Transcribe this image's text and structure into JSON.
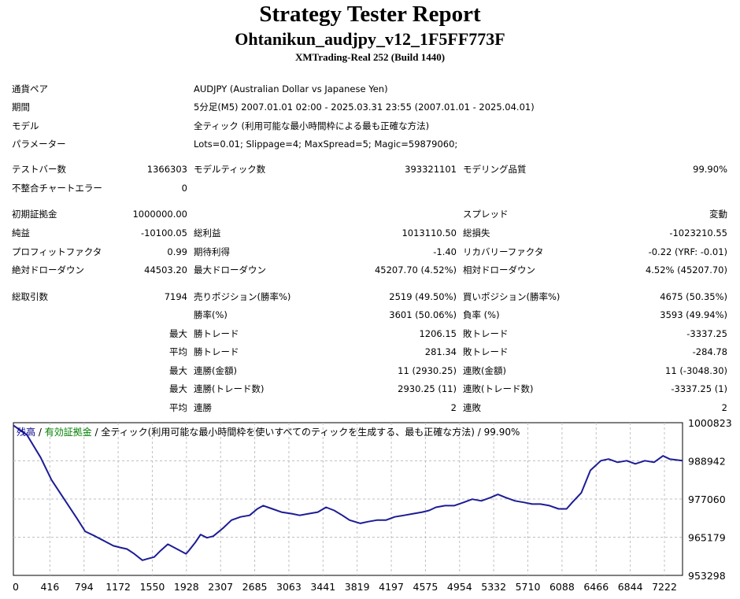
{
  "header": {
    "title": "Strategy Tester Report",
    "ea_name": "Ohtanikun_audjpy_v12_1F5FF773F",
    "server": "XMTrading-Real 252 (Build 1440)"
  },
  "info": {
    "symbol_label": "通貨ペア",
    "symbol_value": "AUDJPY (Australian Dollar vs Japanese Yen)",
    "period_label": "期間",
    "period_value": "5分足(M5) 2007.01.01 02:00 - 2025.03.31 23:55 (2007.01.01 - 2025.04.01)",
    "model_label": "モデル",
    "model_value": "全ティック (利用可能な最小時間枠による最も正確な方法)",
    "params_label": "パラメーター",
    "params_value": "Lots=0.01; Slippage=4; MaxSpread=5; Magic=59879060;"
  },
  "stats": {
    "bars_label": "テストバー数",
    "bars_value": "1366303",
    "ticks_label": "モデルティック数",
    "ticks_value": "393321101",
    "quality_label": "モデリング品質",
    "quality_value": "99.90%",
    "mismatch_label": "不整合チャートエラー",
    "mismatch_value": "0",
    "deposit_label": "初期証拠金",
    "deposit_value": "1000000.00",
    "spread_label": "スプレッド",
    "spread_value": "変動",
    "net_label": "純益",
    "net_value": "-10100.05",
    "gross_profit_label": "総利益",
    "gross_profit_value": "1013110.50",
    "gross_loss_label": "総損失",
    "gross_loss_value": "-1023210.55",
    "pf_label": "プロフィットファクタ",
    "pf_value": "0.99",
    "expected_label": "期待利得",
    "expected_value": "-1.40",
    "recovery_label": "リカバリーファクタ",
    "recovery_value": "-0.22 (YRF: -0.01)",
    "abs_dd_label": "絶対ドローダウン",
    "abs_dd_value": "44503.20",
    "max_dd_label": "最大ドローダウン",
    "max_dd_value": "45207.70 (4.52%)",
    "rel_dd_label": "相対ドローダウン",
    "rel_dd_value": "4.52% (45207.70)",
    "trades_label": "総取引数",
    "trades_value": "7194",
    "short_label": "売りポジション(勝率%)",
    "short_value": "2519 (49.50%)",
    "long_label": "買いポジション(勝率%)",
    "long_value": "4675 (50.35%)",
    "winrate_label": "勝率(%)",
    "winrate_value": "3601 (50.06%)",
    "lossrate_label": "負率 (%)",
    "lossrate_value": "3593 (49.94%)",
    "max_prefix": "最大",
    "avg_prefix": "平均",
    "largest_win_label": "勝トレード",
    "largest_win_value": "1206.15",
    "largest_loss_label": "敗トレード",
    "largest_loss_value": "-3337.25",
    "avg_win_label": "勝トレード",
    "avg_win_value": "281.34",
    "avg_loss_label": "敗トレード",
    "avg_loss_value": "-284.78",
    "max_consec_wins_label": "連勝(金額)",
    "max_consec_wins_value": "11 (2930.25)",
    "max_consec_losses_label": "連敗(金額)",
    "max_consec_losses_value": "11 (-3048.30)",
    "max_consec_profit_label": "連勝(トレード数)",
    "max_consec_profit_value": "2930.25 (11)",
    "max_consec_loss_label": "連敗(トレード数)",
    "max_consec_loss_value": "-3337.25 (1)",
    "avg_consec_wins_label": "連勝",
    "avg_consec_wins_value": "2",
    "avg_consec_losses_label": "連敗",
    "avg_consec_losses_value": "2"
  },
  "chart_data": {
    "type": "line",
    "legend": {
      "balance": "残高",
      "sep1": " / ",
      "equity": "有効証拠金",
      "sep2": " / ",
      "model": "全ティック(利用可能な最小時間枠を使いすべてのティックを生成する、最も正確な方法)",
      "sep3": " / ",
      "quality": "99.90%"
    },
    "colors": {
      "balance": "#00008b",
      "equity": "#008000",
      "line": "#1c1c96",
      "grid": "#c0c0c0"
    },
    "x_ticks": [
      "0",
      "416",
      "794",
      "1172",
      "1550",
      "1928",
      "2307",
      "2685",
      "3063",
      "3441",
      "3819",
      "4197",
      "4575",
      "4954",
      "5332",
      "5710",
      "6088",
      "6466",
      "6844",
      "7222"
    ],
    "y_ticks": [
      "1000823",
      "988942",
      "977060",
      "965179",
      "953298"
    ],
    "xlim": [
      0,
      7364
    ],
    "ylim": [
      953298,
      1000823
    ],
    "series": [
      {
        "x": [
          0,
          150,
          300,
          420,
          560,
          700,
          790,
          900,
          1000,
          1100,
          1172,
          1250,
          1330,
          1420,
          1480,
          1550,
          1620,
          1700,
          1800,
          1900,
          1930,
          2000,
          2060,
          2130,
          2200,
          2307,
          2400,
          2500,
          2600,
          2685,
          2750,
          2850,
          2950,
          3063,
          3150,
          3250,
          3350,
          3441,
          3530,
          3620,
          3700,
          3819,
          3900,
          4000,
          4100,
          4197,
          4300,
          4400,
          4500,
          4575,
          4650,
          4750,
          4850,
          4954,
          5050,
          5150,
          5250,
          5332,
          5420,
          5520,
          5620,
          5710,
          5800,
          5900,
          6000,
          6088,
          6150,
          6250,
          6350,
          6466,
          6550,
          6650,
          6750,
          6844,
          6950,
          7050,
          7150,
          7222,
          7364
        ],
        "y": [
          1000000,
          997000,
          990000,
          983000,
          977000,
          971000,
          967000,
          965500,
          964000,
          962500,
          962000,
          961500,
          960000,
          958000,
          958500,
          959000,
          961000,
          963000,
          961500,
          960000,
          961000,
          963500,
          966000,
          965000,
          965500,
          968000,
          970500,
          971500,
          972000,
          974000,
          975000,
          974000,
          973000,
          972500,
          972000,
          972500,
          973000,
          974500,
          973500,
          972000,
          970500,
          969500,
          970000,
          970500,
          970500,
          971500,
          972000,
          972500,
          973000,
          973500,
          974500,
          975000,
          975000,
          976000,
          977000,
          976500,
          977500,
          978500,
          977500,
          976500,
          976000,
          975500,
          975500,
          975000,
          974000,
          974000,
          976000,
          979000,
          986000,
          989000,
          989500,
          988500,
          989000,
          988000,
          989000,
          988500,
          990500,
          989500,
          989000
        ]
      }
    ]
  }
}
